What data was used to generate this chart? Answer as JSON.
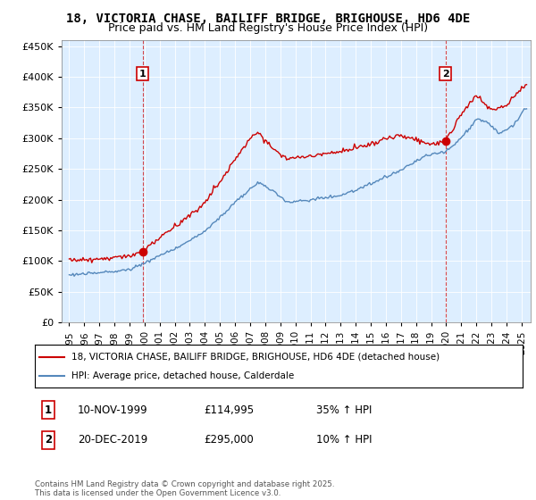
{
  "title1": "18, VICTORIA CHASE, BAILIFF BRIDGE, BRIGHOUSE, HD6 4DE",
  "title2": "Price paid vs. HM Land Registry's House Price Index (HPI)",
  "legend_line1": "18, VICTORIA CHASE, BAILIFF BRIDGE, BRIGHOUSE, HD6 4DE (detached house)",
  "legend_line2": "HPI: Average price, detached house, Calderdale",
  "note1_label": "1",
  "note1_date": "10-NOV-1999",
  "note1_price": "£114,995",
  "note1_hpi": "35% ↑ HPI",
  "note2_label": "2",
  "note2_date": "20-DEC-2019",
  "note2_price": "£295,000",
  "note2_hpi": "10% ↑ HPI",
  "copyright": "Contains HM Land Registry data © Crown copyright and database right 2025.\nThis data is licensed under the Open Government Licence v3.0.",
  "red_color": "#cc0000",
  "blue_color": "#5588bb",
  "bg_color": "#ddeeff",
  "marker1_year_f": 1999.875,
  "marker2_year_f": 2019.958,
  "marker1_value": 114995,
  "marker2_value": 295000,
  "ylim_min": 0,
  "ylim_max": 460000,
  "yticks": [
    0,
    50000,
    100000,
    150000,
    200000,
    250000,
    300000,
    350000,
    400000,
    450000
  ],
  "xtick_years": [
    1995,
    1996,
    1997,
    1998,
    1999,
    2000,
    2001,
    2002,
    2003,
    2004,
    2005,
    2006,
    2007,
    2008,
    2009,
    2010,
    2011,
    2012,
    2013,
    2014,
    2015,
    2016,
    2017,
    2018,
    2019,
    2020,
    2021,
    2022,
    2023,
    2024,
    2025
  ]
}
